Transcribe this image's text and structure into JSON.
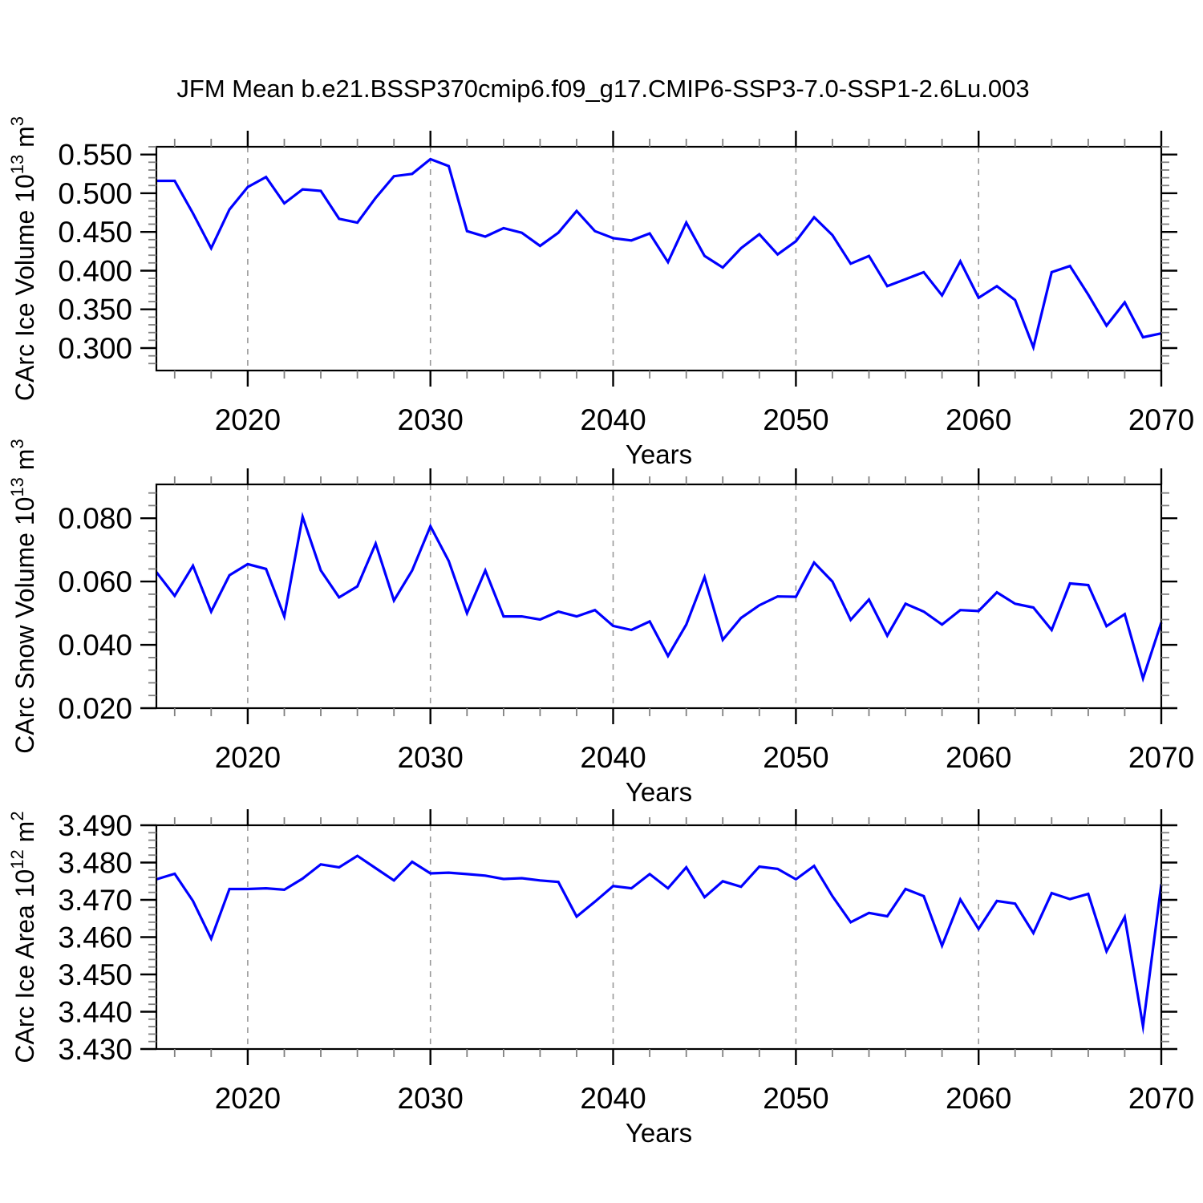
{
  "title": "JFM Mean b.e21.BSSP370cmip6.f09_g17.CMIP6-SSP3-7.0-SSP1-2.6Lu.003",
  "colors": {
    "line": "#0000ff",
    "axis": "#000000",
    "major_tick": "#000000",
    "minor_tick": "#808080",
    "grid": "#999999",
    "text": "#000000",
    "background": "#ffffff"
  },
  "chart_data": {
    "type": "line",
    "title": "JFM Mean b.e21.BSSP370cmip6.f09_g17.CMIP6-SSP3-7.0-SSP1-2.6Lu.003",
    "x_label": "Years",
    "legend": "none",
    "grid": "vertical-dashed-at-decades",
    "xlim": [
      2015,
      2070
    ],
    "xticks": {
      "values": [
        2020,
        2030,
        2040,
        2050,
        2060,
        2070
      ],
      "labels": [
        "2020",
        "2030",
        "2040",
        "2050",
        "2060",
        "2070"
      ]
    },
    "x_minor_step": 2,
    "grid_x": [
      2020,
      2030,
      2040,
      2050,
      2060
    ],
    "years": [
      2015,
      2016,
      2017,
      2018,
      2019,
      2020,
      2021,
      2022,
      2023,
      2024,
      2025,
      2026,
      2027,
      2028,
      2029,
      2030,
      2031,
      2032,
      2033,
      2034,
      2035,
      2036,
      2037,
      2038,
      2039,
      2040,
      2041,
      2042,
      2043,
      2044,
      2045,
      2046,
      2047,
      2048,
      2049,
      2050,
      2051,
      2052,
      2053,
      2054,
      2055,
      2056,
      2057,
      2058,
      2059,
      2060,
      2061,
      2062,
      2063,
      2064,
      2065,
      2066,
      2067,
      2068,
      2069,
      2070
    ],
    "panels": [
      {
        "name": "ice-volume",
        "ylabel_plain": "CArc Ice Volume 10^13 m^3",
        "ylabel_segments": [
          {
            "t": "CArc Ice Volume 10"
          },
          {
            "t": "13",
            "sup": true
          },
          {
            "t": " m"
          },
          {
            "t": "3",
            "sup": true
          }
        ],
        "ylim": [
          0.271,
          0.56
        ],
        "yticks": {
          "values": [
            0.3,
            0.35,
            0.4,
            0.45,
            0.5,
            0.55
          ],
          "labels": [
            "0.300",
            "0.350",
            "0.400",
            "0.450",
            "0.500",
            "0.550"
          ]
        },
        "y_minor_step": 0.01,
        "values": [
          0.516,
          0.516,
          0.474,
          0.429,
          0.479,
          0.508,
          0.521,
          0.487,
          0.505,
          0.503,
          0.467,
          0.462,
          0.494,
          0.522,
          0.525,
          0.544,
          0.535,
          0.451,
          0.444,
          0.455,
          0.449,
          0.432,
          0.449,
          0.477,
          0.451,
          0.442,
          0.439,
          0.448,
          0.411,
          0.462,
          0.419,
          0.404,
          0.429,
          0.447,
          0.421,
          0.438,
          0.469,
          0.446,
          0.409,
          0.419,
          0.38,
          0.389,
          0.398,
          0.368,
          0.412,
          0.365,
          0.38,
          0.362,
          0.301,
          0.398,
          0.406,
          0.369,
          0.329,
          0.359,
          0.314,
          0.319
        ]
      },
      {
        "name": "snow-volume",
        "ylabel_plain": "CArc Snow Volume 10^13 m^3",
        "ylabel_segments": [
          {
            "t": "CArc Snow Volume 10"
          },
          {
            "t": "13",
            "sup": true
          },
          {
            "t": " m"
          },
          {
            "t": "3",
            "sup": true
          }
        ],
        "ylim": [
          0.02,
          0.0907
        ],
        "yticks": {
          "values": [
            0.02,
            0.04,
            0.06,
            0.08
          ],
          "labels": [
            "0.020",
            "0.040",
            "0.060",
            "0.080"
          ]
        },
        "y_minor_step": 0.004,
        "values": [
          0.063,
          0.0555,
          0.065,
          0.0505,
          0.062,
          0.0655,
          0.064,
          0.049,
          0.0805,
          0.0635,
          0.055,
          0.0585,
          0.072,
          0.054,
          0.0635,
          0.0775,
          0.0665,
          0.05,
          0.0635,
          0.049,
          0.049,
          0.048,
          0.0505,
          0.049,
          0.051,
          0.046,
          0.0447,
          0.0474,
          0.0365,
          0.0464,
          0.0614,
          0.0416,
          0.0485,
          0.0525,
          0.0553,
          0.0552,
          0.066,
          0.06,
          0.0479,
          0.0543,
          0.0429,
          0.053,
          0.0505,
          0.0464,
          0.051,
          0.0507,
          0.0566,
          0.053,
          0.0518,
          0.0447,
          0.0594,
          0.0589,
          0.0459,
          0.0497,
          0.0294,
          0.0471
        ]
      },
      {
        "name": "ice-area",
        "ylabel_plain": "CArc Ice Area 10^12 m^2",
        "ylabel_segments": [
          {
            "t": "CArc Ice Area 10"
          },
          {
            "t": "12",
            "sup": true
          },
          {
            "t": " m"
          },
          {
            "t": "2",
            "sup": true
          }
        ],
        "ylim": [
          3.43,
          3.49
        ],
        "yticks": {
          "values": [
            3.43,
            3.44,
            3.45,
            3.46,
            3.47,
            3.48,
            3.49
          ],
          "labels": [
            "3.430",
            "3.440",
            "3.450",
            "3.460",
            "3.470",
            "3.480",
            "3.490"
          ]
        },
        "y_minor_step": 0.002,
        "values": [
          3.4755,
          3.477,
          3.4697,
          3.4596,
          3.4729,
          3.4729,
          3.4731,
          3.4727,
          3.4757,
          3.4795,
          3.4787,
          3.4818,
          3.4785,
          3.4752,
          3.4802,
          3.4771,
          3.4773,
          3.4769,
          3.4765,
          3.4756,
          3.4758,
          3.4752,
          3.4748,
          3.4655,
          3.4695,
          3.4737,
          3.4731,
          3.4769,
          3.4731,
          3.4787,
          3.4707,
          3.475,
          3.4735,
          3.4789,
          3.4783,
          3.4755,
          3.4791,
          3.471,
          3.464,
          3.4665,
          3.4656,
          3.4729,
          3.471,
          3.4577,
          3.4701,
          3.4622,
          3.4697,
          3.469,
          3.4611,
          3.4718,
          3.4702,
          3.4716,
          3.4562,
          3.4654,
          3.4361,
          3.4742
        ]
      }
    ]
  }
}
